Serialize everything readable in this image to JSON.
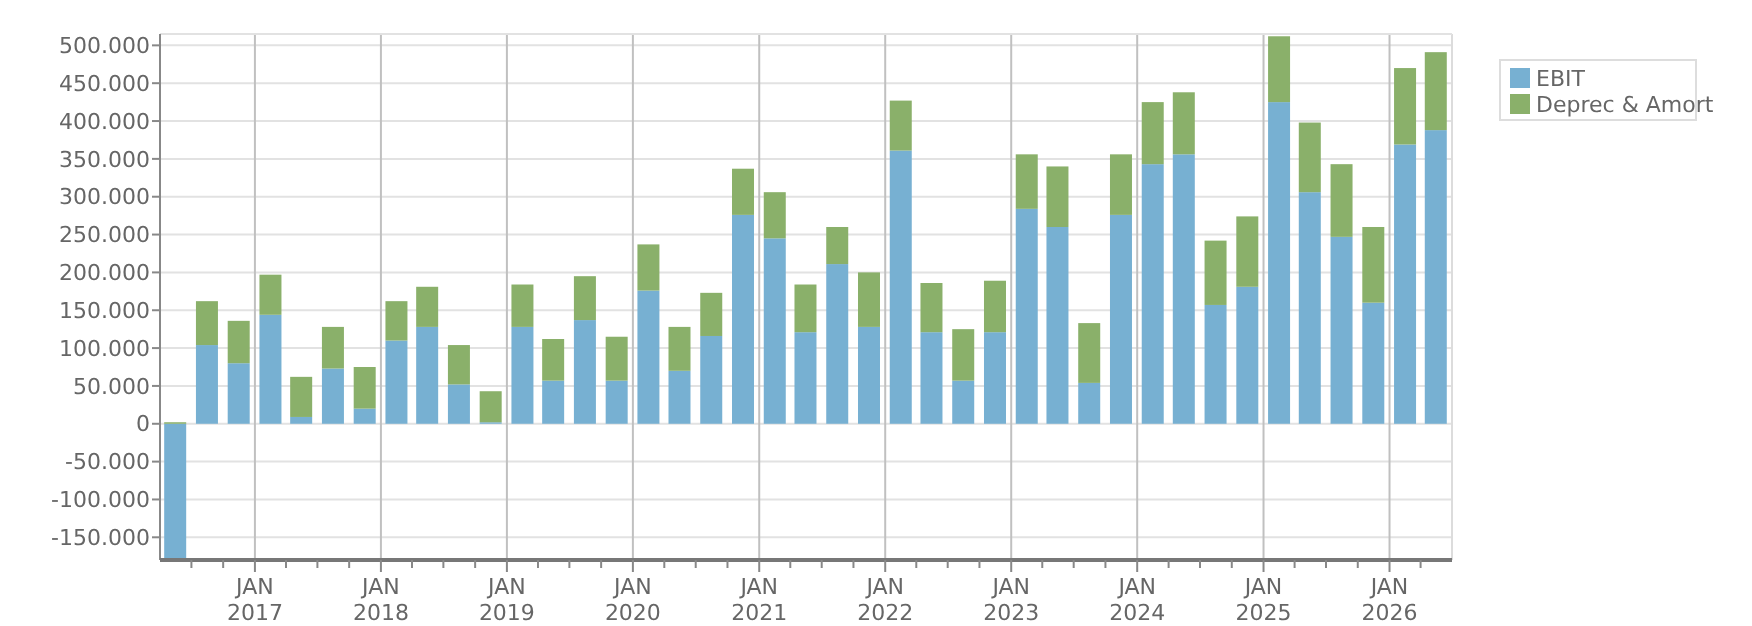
{
  "chart_data": {
    "type": "bar",
    "stacked": true,
    "x": [
      "2016-05-15",
      "2016-08-15",
      "2016-11-15",
      "2017-02-15",
      "2017-05-15",
      "2017-08-15",
      "2017-11-15",
      "2018-02-15",
      "2018-05-15",
      "2018-08-15",
      "2018-11-15",
      "2019-02-15",
      "2019-05-15",
      "2019-08-15",
      "2019-11-15",
      "2020-02-15",
      "2020-05-15",
      "2020-08-15",
      "2020-11-15",
      "2021-02-15",
      "2021-05-15",
      "2021-08-15",
      "2021-11-15",
      "2022-02-15",
      "2022-05-15",
      "2022-08-15",
      "2022-11-15",
      "2023-02-15",
      "2023-05-15",
      "2023-08-15",
      "2023-11-15",
      "2024-02-15",
      "2024-05-15",
      "2024-08-15",
      "2024-11-15",
      "2025-02-15",
      "2025-05-15",
      "2025-08-15",
      "2025-11-15",
      "2026-02-15",
      "2026-05-15"
    ],
    "series": [
      {
        "name": "EBIT",
        "color": "#77b0d2",
        "values": [
          -180000,
          104000,
          80000,
          144000,
          9000,
          73000,
          20000,
          110000,
          128000,
          52000,
          2000,
          128000,
          57000,
          137000,
          57000,
          176000,
          70000,
          116000,
          276000,
          245000,
          121000,
          211000,
          128000,
          361000,
          121000,
          57000,
          121000,
          284000,
          260000,
          54000,
          276000,
          343000,
          356000,
          157000,
          181000,
          425000,
          306000,
          247000,
          160000,
          369000,
          388000
        ]
      },
      {
        "name": "Deprec & Amort",
        "color": "#8ab06a",
        "values": [
          2000,
          58000,
          56000,
          53000,
          53000,
          55000,
          55000,
          52000,
          53000,
          52000,
          41000,
          56000,
          55000,
          58000,
          58000,
          61000,
          58000,
          57000,
          61000,
          61000,
          63000,
          49000,
          72000,
          66000,
          65000,
          68000,
          68000,
          72000,
          80000,
          79000,
          80000,
          82000,
          82000,
          85000,
          93000,
          87000,
          92000,
          96000,
          100000,
          101000,
          103000
        ]
      }
    ],
    "xlim": [
      "2016-04-01",
      "2026-07-01"
    ],
    "xticks": [
      {
        "value": "2016-07-01",
        "label": null
      },
      {
        "value": "2016-10-01",
        "label": null
      },
      {
        "value": "2017-01-01",
        "label": "JAN 2017"
      },
      {
        "value": "2017-04-01",
        "label": null
      },
      {
        "value": "2017-07-01",
        "label": null
      },
      {
        "value": "2017-10-01",
        "label": null
      },
      {
        "value": "2018-01-01",
        "label": "JAN 2018"
      },
      {
        "value": "2018-04-01",
        "label": null
      },
      {
        "value": "2018-07-01",
        "label": null
      },
      {
        "value": "2018-10-01",
        "label": null
      },
      {
        "value": "2019-01-01",
        "label": "JAN 2019"
      },
      {
        "value": "2019-04-01",
        "label": null
      },
      {
        "value": "2019-07-01",
        "label": null
      },
      {
        "value": "2019-10-01",
        "label": null
      },
      {
        "value": "2020-01-01",
        "label": "JAN 2020"
      },
      {
        "value": "2020-04-01",
        "label": null
      },
      {
        "value": "2020-07-01",
        "label": null
      },
      {
        "value": "2020-10-01",
        "label": null
      },
      {
        "value": "2021-01-01",
        "label": "JAN 2021"
      },
      {
        "value": "2021-04-01",
        "label": null
      },
      {
        "value": "2021-07-01",
        "label": null
      },
      {
        "value": "2021-10-01",
        "label": null
      },
      {
        "value": "2022-01-01",
        "label": "JAN 2022"
      },
      {
        "value": "2022-04-01",
        "label": null
      },
      {
        "value": "2022-07-01",
        "label": null
      },
      {
        "value": "2022-10-01",
        "label": null
      },
      {
        "value": "2023-01-01",
        "label": "JAN 2023"
      },
      {
        "value": "2023-04-01",
        "label": null
      },
      {
        "value": "2023-07-01",
        "label": null
      },
      {
        "value": "2023-10-01",
        "label": null
      },
      {
        "value": "2024-01-01",
        "label": "JAN 2024"
      },
      {
        "value": "2024-04-01",
        "label": null
      },
      {
        "value": "2024-07-01",
        "label": null
      },
      {
        "value": "2024-10-01",
        "label": null
      },
      {
        "value": "2025-01-01",
        "label": "JAN 2025"
      },
      {
        "value": "2025-04-01",
        "label": null
      },
      {
        "value": "2025-07-01",
        "label": null
      },
      {
        "value": "2025-10-01",
        "label": null
      },
      {
        "value": "2026-01-01",
        "label": "JAN 2026"
      },
      {
        "value": "2026-04-01",
        "label": null
      }
    ],
    "ylim": [
      -180000,
      515000
    ],
    "yticks": [
      {
        "value": -150000,
        "label": "-150.000"
      },
      {
        "value": -100000,
        "label": "-100.000"
      },
      {
        "value": -50000,
        "label": "-50.000"
      },
      0,
      {
        "value": 50000,
        "label": "50.000"
      },
      {
        "value": 100000,
        "label": "100.000"
      },
      {
        "value": 150000,
        "label": "150.000"
      },
      {
        "value": 200000,
        "label": "200.000"
      },
      {
        "value": 250000,
        "label": "250.000"
      },
      {
        "value": 300000,
        "label": "300.000"
      },
      {
        "value": 350000,
        "label": "350.000"
      },
      {
        "value": 400000,
        "label": "400.000"
      },
      {
        "value": 450000,
        "label": "450.000"
      },
      {
        "value": 500000,
        "label": "500.000"
      }
    ],
    "grid": true,
    "legend": "top right"
  }
}
